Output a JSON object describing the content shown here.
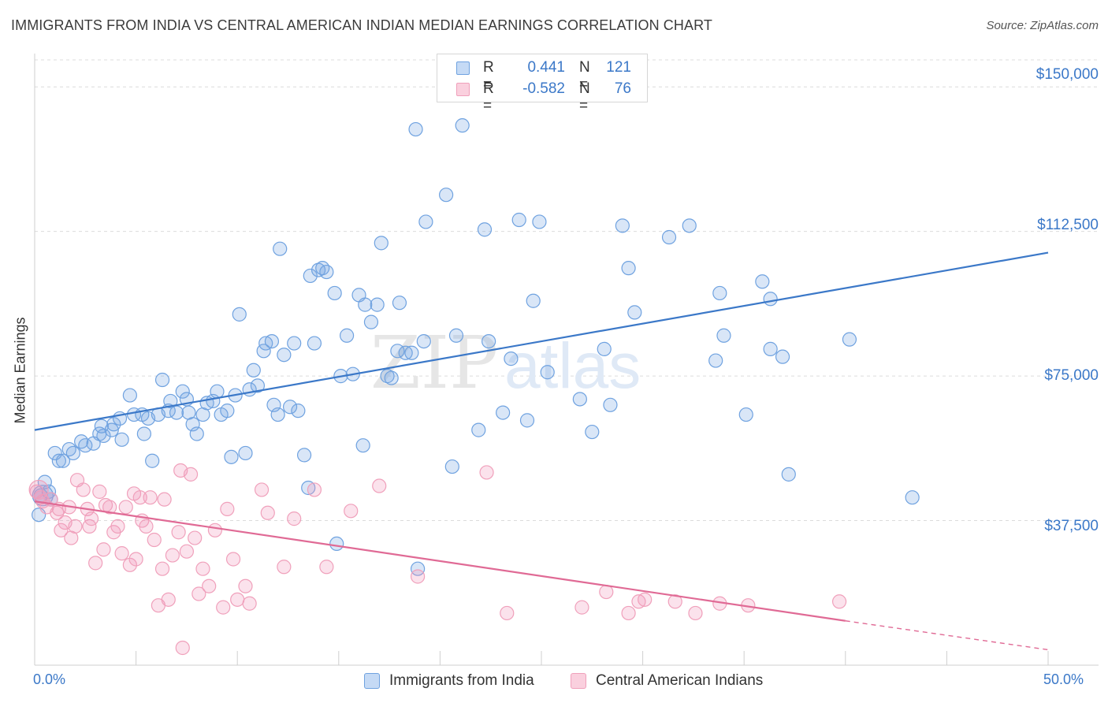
{
  "title": "IMMIGRANTS FROM INDIA VS CENTRAL AMERICAN INDIAN MEDIAN EARNINGS CORRELATION CHART",
  "source": "Source: ZipAtlas.com",
  "watermark": {
    "zip": "ZIP",
    "atlas": "atlas"
  },
  "legend_top": [
    {
      "r_label": "R =",
      "r_value": "0.441",
      "n_label": "N =",
      "n_value": "121",
      "color": "#6fa2e0"
    },
    {
      "r_label": "R =",
      "r_value": "-0.582",
      "n_label": "N =",
      "n_value": "76",
      "color": "#f0a0bb"
    }
  ],
  "chart_data": {
    "type": "scatter",
    "title": "IMMIGRANTS FROM INDIA VS CENTRAL AMERICAN INDIAN MEDIAN EARNINGS CORRELATION CHART",
    "xlabel": "",
    "ylabel": "Median Earnings",
    "xlim": [
      0,
      50
    ],
    "ylim": [
      0,
      157000
    ],
    "x_tick_labels": [
      "0.0%",
      "50.0%"
    ],
    "y_ticks": [
      37500,
      75000,
      112500,
      150000
    ],
    "y_tick_labels": [
      "$37,500",
      "$75,000",
      "$112,500",
      "$150,000"
    ],
    "grid": true,
    "legend_position": "bottom",
    "series": [
      {
        "name": "Immigrants from India",
        "color": "#6fa2e0",
        "trend": {
          "x": [
            0,
            50
          ],
          "y": [
            61000,
            107000
          ],
          "style": "solid"
        },
        "points": [
          [
            0.2,
            39000
          ],
          [
            0.3,
            44000
          ],
          [
            0.5,
            47500
          ],
          [
            0.7,
            45000
          ],
          [
            0.8,
            43000
          ],
          [
            1.0,
            55000
          ],
          [
            1.2,
            53000
          ],
          [
            1.4,
            53000
          ],
          [
            1.7,
            56000
          ],
          [
            1.9,
            55000
          ],
          [
            2.3,
            58000
          ],
          [
            2.5,
            57000
          ],
          [
            2.9,
            57500
          ],
          [
            3.2,
            60000
          ],
          [
            3.4,
            59500
          ],
          [
            3.3,
            62000
          ],
          [
            3.8,
            61000
          ],
          [
            3.9,
            62500
          ],
          [
            4.2,
            64000
          ],
          [
            4.3,
            58500
          ],
          [
            4.7,
            70000
          ],
          [
            4.9,
            65000
          ],
          [
            5.3,
            65000
          ],
          [
            5.4,
            60000
          ],
          [
            5.6,
            64000
          ],
          [
            5.8,
            53000
          ],
          [
            6.1,
            65000
          ],
          [
            6.3,
            74000
          ],
          [
            6.6,
            66000
          ],
          [
            6.7,
            68500
          ],
          [
            7.0,
            65500
          ],
          [
            7.3,
            71000
          ],
          [
            7.5,
            69000
          ],
          [
            7.6,
            65500
          ],
          [
            7.8,
            62500
          ],
          [
            8.0,
            60000
          ],
          [
            8.3,
            65000
          ],
          [
            8.5,
            68000
          ],
          [
            8.8,
            68500
          ],
          [
            9.0,
            71000
          ],
          [
            9.2,
            65000
          ],
          [
            9.5,
            66000
          ],
          [
            9.7,
            54000
          ],
          [
            9.9,
            70000
          ],
          [
            10.1,
            91000
          ],
          [
            10.4,
            55000
          ],
          [
            10.6,
            71500
          ],
          [
            10.8,
            76500
          ],
          [
            11.0,
            72500
          ],
          [
            11.3,
            81500
          ],
          [
            11.4,
            83500
          ],
          [
            11.7,
            84000
          ],
          [
            11.8,
            67500
          ],
          [
            12.0,
            65000
          ],
          [
            12.1,
            108000
          ],
          [
            12.3,
            80500
          ],
          [
            12.6,
            67000
          ],
          [
            12.8,
            83500
          ],
          [
            13.0,
            66000
          ],
          [
            13.3,
            54500
          ],
          [
            13.5,
            46000
          ],
          [
            13.8,
            83500
          ],
          [
            13.6,
            101000
          ],
          [
            14.0,
            102500
          ],
          [
            14.2,
            103000
          ],
          [
            14.4,
            102000
          ],
          [
            14.8,
            96500
          ],
          [
            14.9,
            31500
          ],
          [
            15.1,
            75000
          ],
          [
            15.4,
            85500
          ],
          [
            15.7,
            75500
          ],
          [
            16.0,
            96000
          ],
          [
            16.2,
            57000
          ],
          [
            16.3,
            93500
          ],
          [
            16.6,
            89000
          ],
          [
            16.9,
            93500
          ],
          [
            17.1,
            109500
          ],
          [
            17.4,
            75000
          ],
          [
            17.6,
            74500
          ],
          [
            17.9,
            81500
          ],
          [
            18.0,
            94000
          ],
          [
            18.3,
            81000
          ],
          [
            18.6,
            81000
          ],
          [
            18.9,
            25000
          ],
          [
            18.8,
            139000
          ],
          [
            19.2,
            84000
          ],
          [
            19.3,
            115000
          ],
          [
            20.3,
            122000
          ],
          [
            20.6,
            51500
          ],
          [
            20.8,
            85500
          ],
          [
            21.1,
            140000
          ],
          [
            21.9,
            61000
          ],
          [
            22.2,
            113000
          ],
          [
            22.4,
            84000
          ],
          [
            23.1,
            65500
          ],
          [
            23.5,
            79500
          ],
          [
            23.9,
            115500
          ],
          [
            24.3,
            63500
          ],
          [
            24.6,
            94500
          ],
          [
            24.9,
            115000
          ],
          [
            25.3,
            76000
          ],
          [
            26.9,
            69000
          ],
          [
            27.5,
            60500
          ],
          [
            28.1,
            82000
          ],
          [
            28.4,
            67500
          ],
          [
            29.0,
            114000
          ],
          [
            29.3,
            103000
          ],
          [
            29.6,
            91500
          ],
          [
            31.3,
            111000
          ],
          [
            32.3,
            114000
          ],
          [
            33.6,
            79000
          ],
          [
            33.8,
            96500
          ],
          [
            34.0,
            85500
          ],
          [
            35.1,
            65000
          ],
          [
            35.9,
            99500
          ],
          [
            36.3,
            82000
          ],
          [
            36.9,
            80000
          ],
          [
            36.3,
            95000
          ],
          [
            37.2,
            49500
          ],
          [
            40.2,
            84500
          ],
          [
            43.3,
            43500
          ]
        ]
      },
      {
        "name": "Central American Indians",
        "color": "#f0a0bb",
        "trend": {
          "x": [
            0,
            40
          ],
          "y": [
            42500,
            11500
          ],
          "style": "solid",
          "extension": {
            "x": [
              40,
              50
            ],
            "y": [
              11500,
              4000
            ],
            "style": "dashed"
          }
        },
        "points": [
          [
            0.1,
            45000
          ],
          [
            0.3,
            43500
          ],
          [
            0.4,
            42500
          ],
          [
            0.6,
            41000
          ],
          [
            0.8,
            43000
          ],
          [
            1.1,
            39500
          ],
          [
            1.2,
            40500
          ],
          [
            1.3,
            35000
          ],
          [
            1.5,
            37000
          ],
          [
            1.7,
            41000
          ],
          [
            1.8,
            33000
          ],
          [
            2.0,
            36000
          ],
          [
            2.1,
            48000
          ],
          [
            2.4,
            45500
          ],
          [
            2.6,
            40500
          ],
          [
            2.7,
            36000
          ],
          [
            2.8,
            38000
          ],
          [
            3.0,
            26500
          ],
          [
            3.2,
            45000
          ],
          [
            3.4,
            30000
          ],
          [
            3.5,
            41500
          ],
          [
            3.7,
            41000
          ],
          [
            3.9,
            34500
          ],
          [
            4.1,
            36000
          ],
          [
            4.3,
            29000
          ],
          [
            4.5,
            41000
          ],
          [
            4.7,
            26000
          ],
          [
            4.9,
            44500
          ],
          [
            5.0,
            27500
          ],
          [
            5.2,
            43500
          ],
          [
            5.3,
            37500
          ],
          [
            5.5,
            36000
          ],
          [
            5.7,
            43500
          ],
          [
            5.9,
            32500
          ],
          [
            6.1,
            15500
          ],
          [
            6.3,
            25000
          ],
          [
            6.4,
            43000
          ],
          [
            6.6,
            17000
          ],
          [
            6.8,
            28500
          ],
          [
            7.1,
            34500
          ],
          [
            7.2,
            50500
          ],
          [
            7.3,
            4500
          ],
          [
            7.5,
            29500
          ],
          [
            7.7,
            49500
          ],
          [
            7.9,
            33000
          ],
          [
            8.1,
            18500
          ],
          [
            8.3,
            25000
          ],
          [
            8.6,
            20500
          ],
          [
            8.9,
            35000
          ],
          [
            9.3,
            15000
          ],
          [
            9.5,
            40500
          ],
          [
            9.8,
            27500
          ],
          [
            10.0,
            17000
          ],
          [
            10.4,
            20500
          ],
          [
            10.6,
            16000
          ],
          [
            11.2,
            45500
          ],
          [
            11.5,
            39500
          ],
          [
            12.3,
            25500
          ],
          [
            12.8,
            38000
          ],
          [
            13.8,
            45500
          ],
          [
            14.4,
            25500
          ],
          [
            15.6,
            40000
          ],
          [
            17.0,
            46500
          ],
          [
            18.9,
            23000
          ],
          [
            22.3,
            50000
          ],
          [
            23.3,
            13500
          ],
          [
            27.0,
            15000
          ],
          [
            28.2,
            19000
          ],
          [
            29.3,
            13500
          ],
          [
            29.8,
            16500
          ],
          [
            30.1,
            17000
          ],
          [
            31.6,
            16500
          ],
          [
            32.6,
            13500
          ],
          [
            33.8,
            16000
          ],
          [
            35.2,
            15500
          ],
          [
            39.7,
            16500
          ]
        ]
      }
    ]
  },
  "bottom_legend": [
    {
      "label": "Immigrants from India",
      "color": "#6fa2e0"
    },
    {
      "label": "Central American Indians",
      "color": "#f0a0bb"
    }
  ]
}
